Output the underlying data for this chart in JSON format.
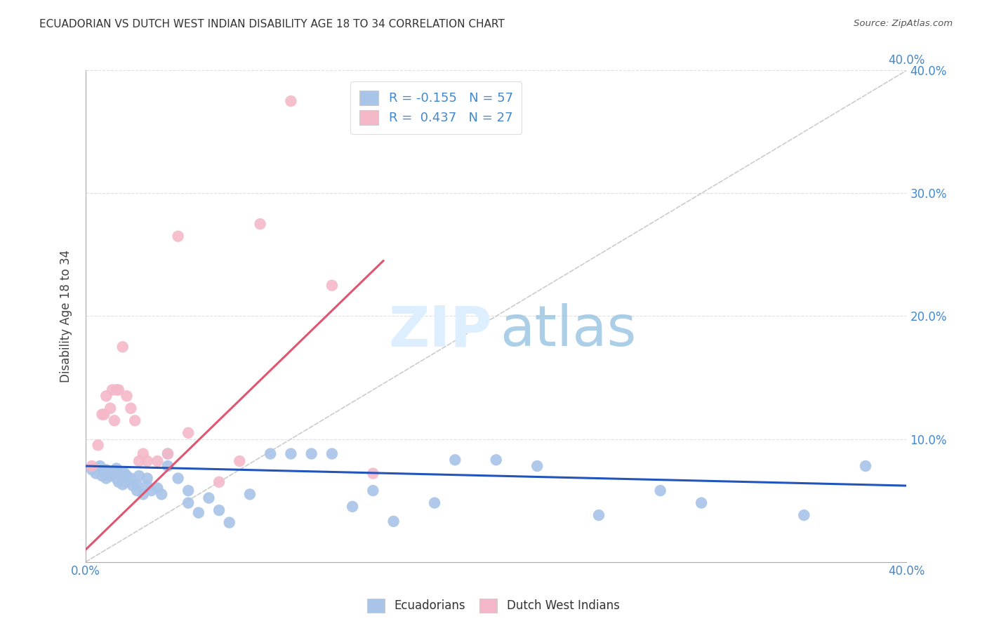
{
  "title": "ECUADORIAN VS DUTCH WEST INDIAN DISABILITY AGE 18 TO 34 CORRELATION CHART",
  "source": "Source: ZipAtlas.com",
  "ylabel": "Disability Age 18 to 34",
  "xlim": [
    0.0,
    0.4
  ],
  "ylim": [
    0.0,
    0.4
  ],
  "grid_color": "#e0e0e0",
  "background_color": "#ffffff",
  "blue_color": "#a8c4e8",
  "pink_color": "#f4b8c8",
  "blue_line_color": "#2255bb",
  "pink_line_color": "#e05570",
  "diagonal_color": "#cccccc",
  "tick_label_color": "#4488cc",
  "r_blue": -0.155,
  "n_blue": 57,
  "r_pink": 0.437,
  "n_pink": 27,
  "legend_label_blue": "Ecuadorians",
  "legend_label_pink": "Dutch West Indians",
  "blue_scatter_x": [
    0.003,
    0.005,
    0.007,
    0.008,
    0.009,
    0.01,
    0.01,
    0.012,
    0.012,
    0.013,
    0.015,
    0.015,
    0.015,
    0.016,
    0.017,
    0.018,
    0.018,
    0.019,
    0.02,
    0.02,
    0.022,
    0.023,
    0.025,
    0.025,
    0.026,
    0.028,
    0.03,
    0.03,
    0.032,
    0.035,
    0.037,
    0.04,
    0.04,
    0.045,
    0.05,
    0.05,
    0.055,
    0.06,
    0.065,
    0.07,
    0.08,
    0.09,
    0.1,
    0.11,
    0.12,
    0.13,
    0.14,
    0.15,
    0.17,
    0.18,
    0.2,
    0.22,
    0.25,
    0.28,
    0.3,
    0.35,
    0.38
  ],
  "blue_scatter_y": [
    0.075,
    0.072,
    0.078,
    0.07,
    0.074,
    0.068,
    0.075,
    0.07,
    0.073,
    0.071,
    0.068,
    0.072,
    0.076,
    0.065,
    0.07,
    0.063,
    0.068,
    0.072,
    0.065,
    0.07,
    0.068,
    0.062,
    0.058,
    0.063,
    0.07,
    0.055,
    0.062,
    0.068,
    0.058,
    0.06,
    0.055,
    0.078,
    0.088,
    0.068,
    0.048,
    0.058,
    0.04,
    0.052,
    0.042,
    0.032,
    0.055,
    0.088,
    0.088,
    0.088,
    0.088,
    0.045,
    0.058,
    0.033,
    0.048,
    0.083,
    0.083,
    0.078,
    0.038,
    0.058,
    0.048,
    0.038,
    0.078
  ],
  "pink_scatter_x": [
    0.003,
    0.006,
    0.008,
    0.009,
    0.01,
    0.012,
    0.013,
    0.014,
    0.015,
    0.016,
    0.018,
    0.02,
    0.022,
    0.024,
    0.026,
    0.028,
    0.03,
    0.035,
    0.04,
    0.045,
    0.05,
    0.065,
    0.075,
    0.085,
    0.1,
    0.12,
    0.14
  ],
  "pink_scatter_y": [
    0.078,
    0.095,
    0.12,
    0.12,
    0.135,
    0.125,
    0.14,
    0.115,
    0.14,
    0.14,
    0.175,
    0.135,
    0.125,
    0.115,
    0.082,
    0.088,
    0.082,
    0.082,
    0.088,
    0.265,
    0.105,
    0.065,
    0.082,
    0.275,
    0.375,
    0.225,
    0.072
  ],
  "blue_line_x": [
    0.0,
    0.4
  ],
  "blue_line_y": [
    0.078,
    0.062
  ],
  "pink_line_x": [
    0.0,
    0.145
  ],
  "pink_line_y": [
    0.01,
    0.245
  ]
}
